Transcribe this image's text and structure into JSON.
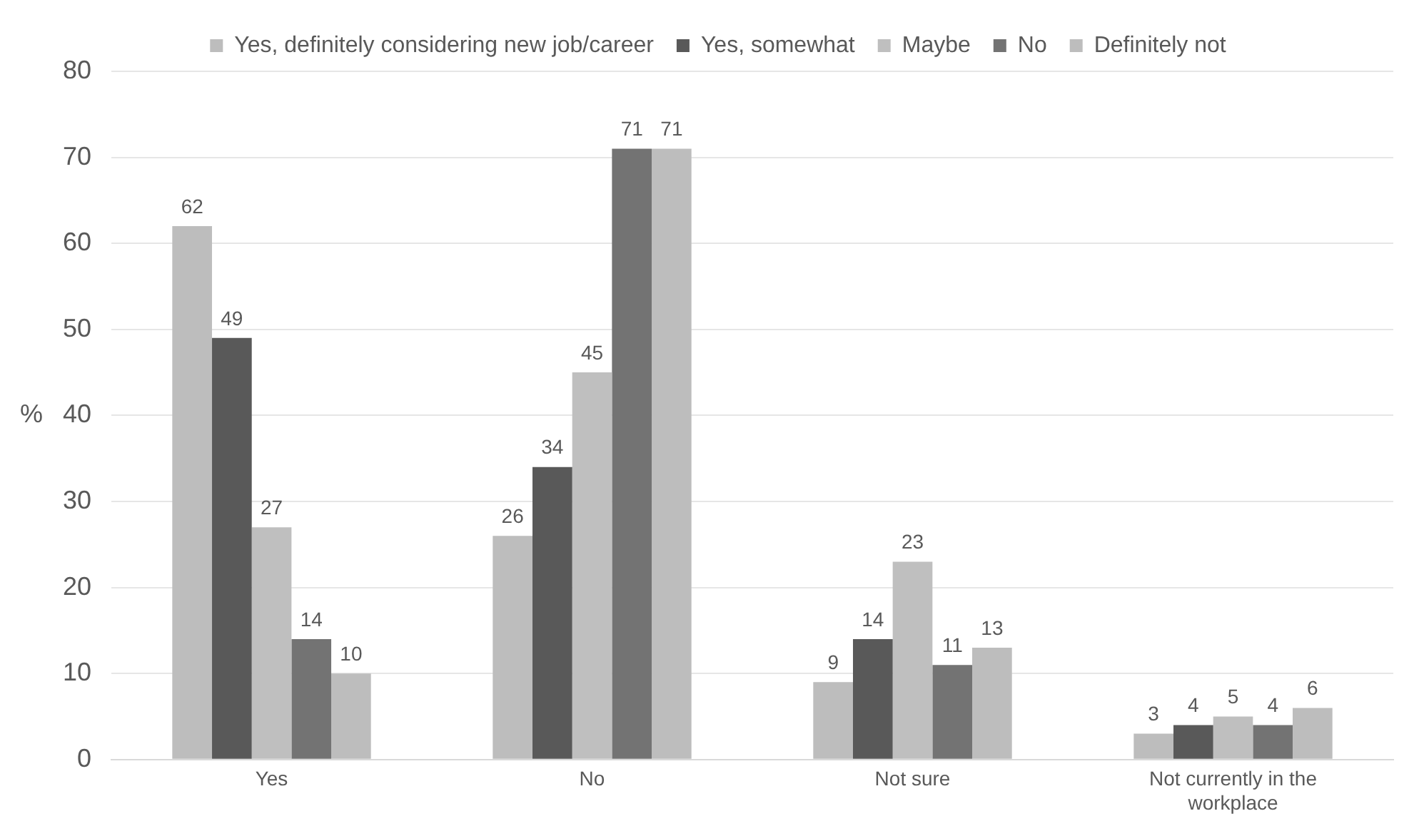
{
  "chart_data": {
    "type": "bar",
    "ylabel": "%",
    "categories": [
      "Yes",
      "No",
      "Not sure",
      "Not currently in the workplace"
    ],
    "series": [
      {
        "name": "Yes, definitely considering new job/career",
        "color": "#bdbdbd",
        "values": [
          62,
          26,
          9,
          3
        ]
      },
      {
        "name": "Yes, somewhat",
        "color": "#595959",
        "values": [
          49,
          34,
          14,
          4
        ]
      },
      {
        "name": "Maybe",
        "color": "#bfbfbf",
        "values": [
          27,
          45,
          23,
          5
        ]
      },
      {
        "name": "No",
        "color": "#737373",
        "values": [
          14,
          71,
          11,
          4
        ]
      },
      {
        "name": "Definitely not",
        "color": "#bdbdbd",
        "values": [
          10,
          71,
          13,
          6
        ]
      }
    ],
    "ylim": [
      0,
      80
    ],
    "yticks": [
      0,
      10,
      20,
      30,
      40,
      50,
      60,
      70,
      80
    ],
    "grid": "y",
    "legend": "top",
    "data_labels": true
  }
}
